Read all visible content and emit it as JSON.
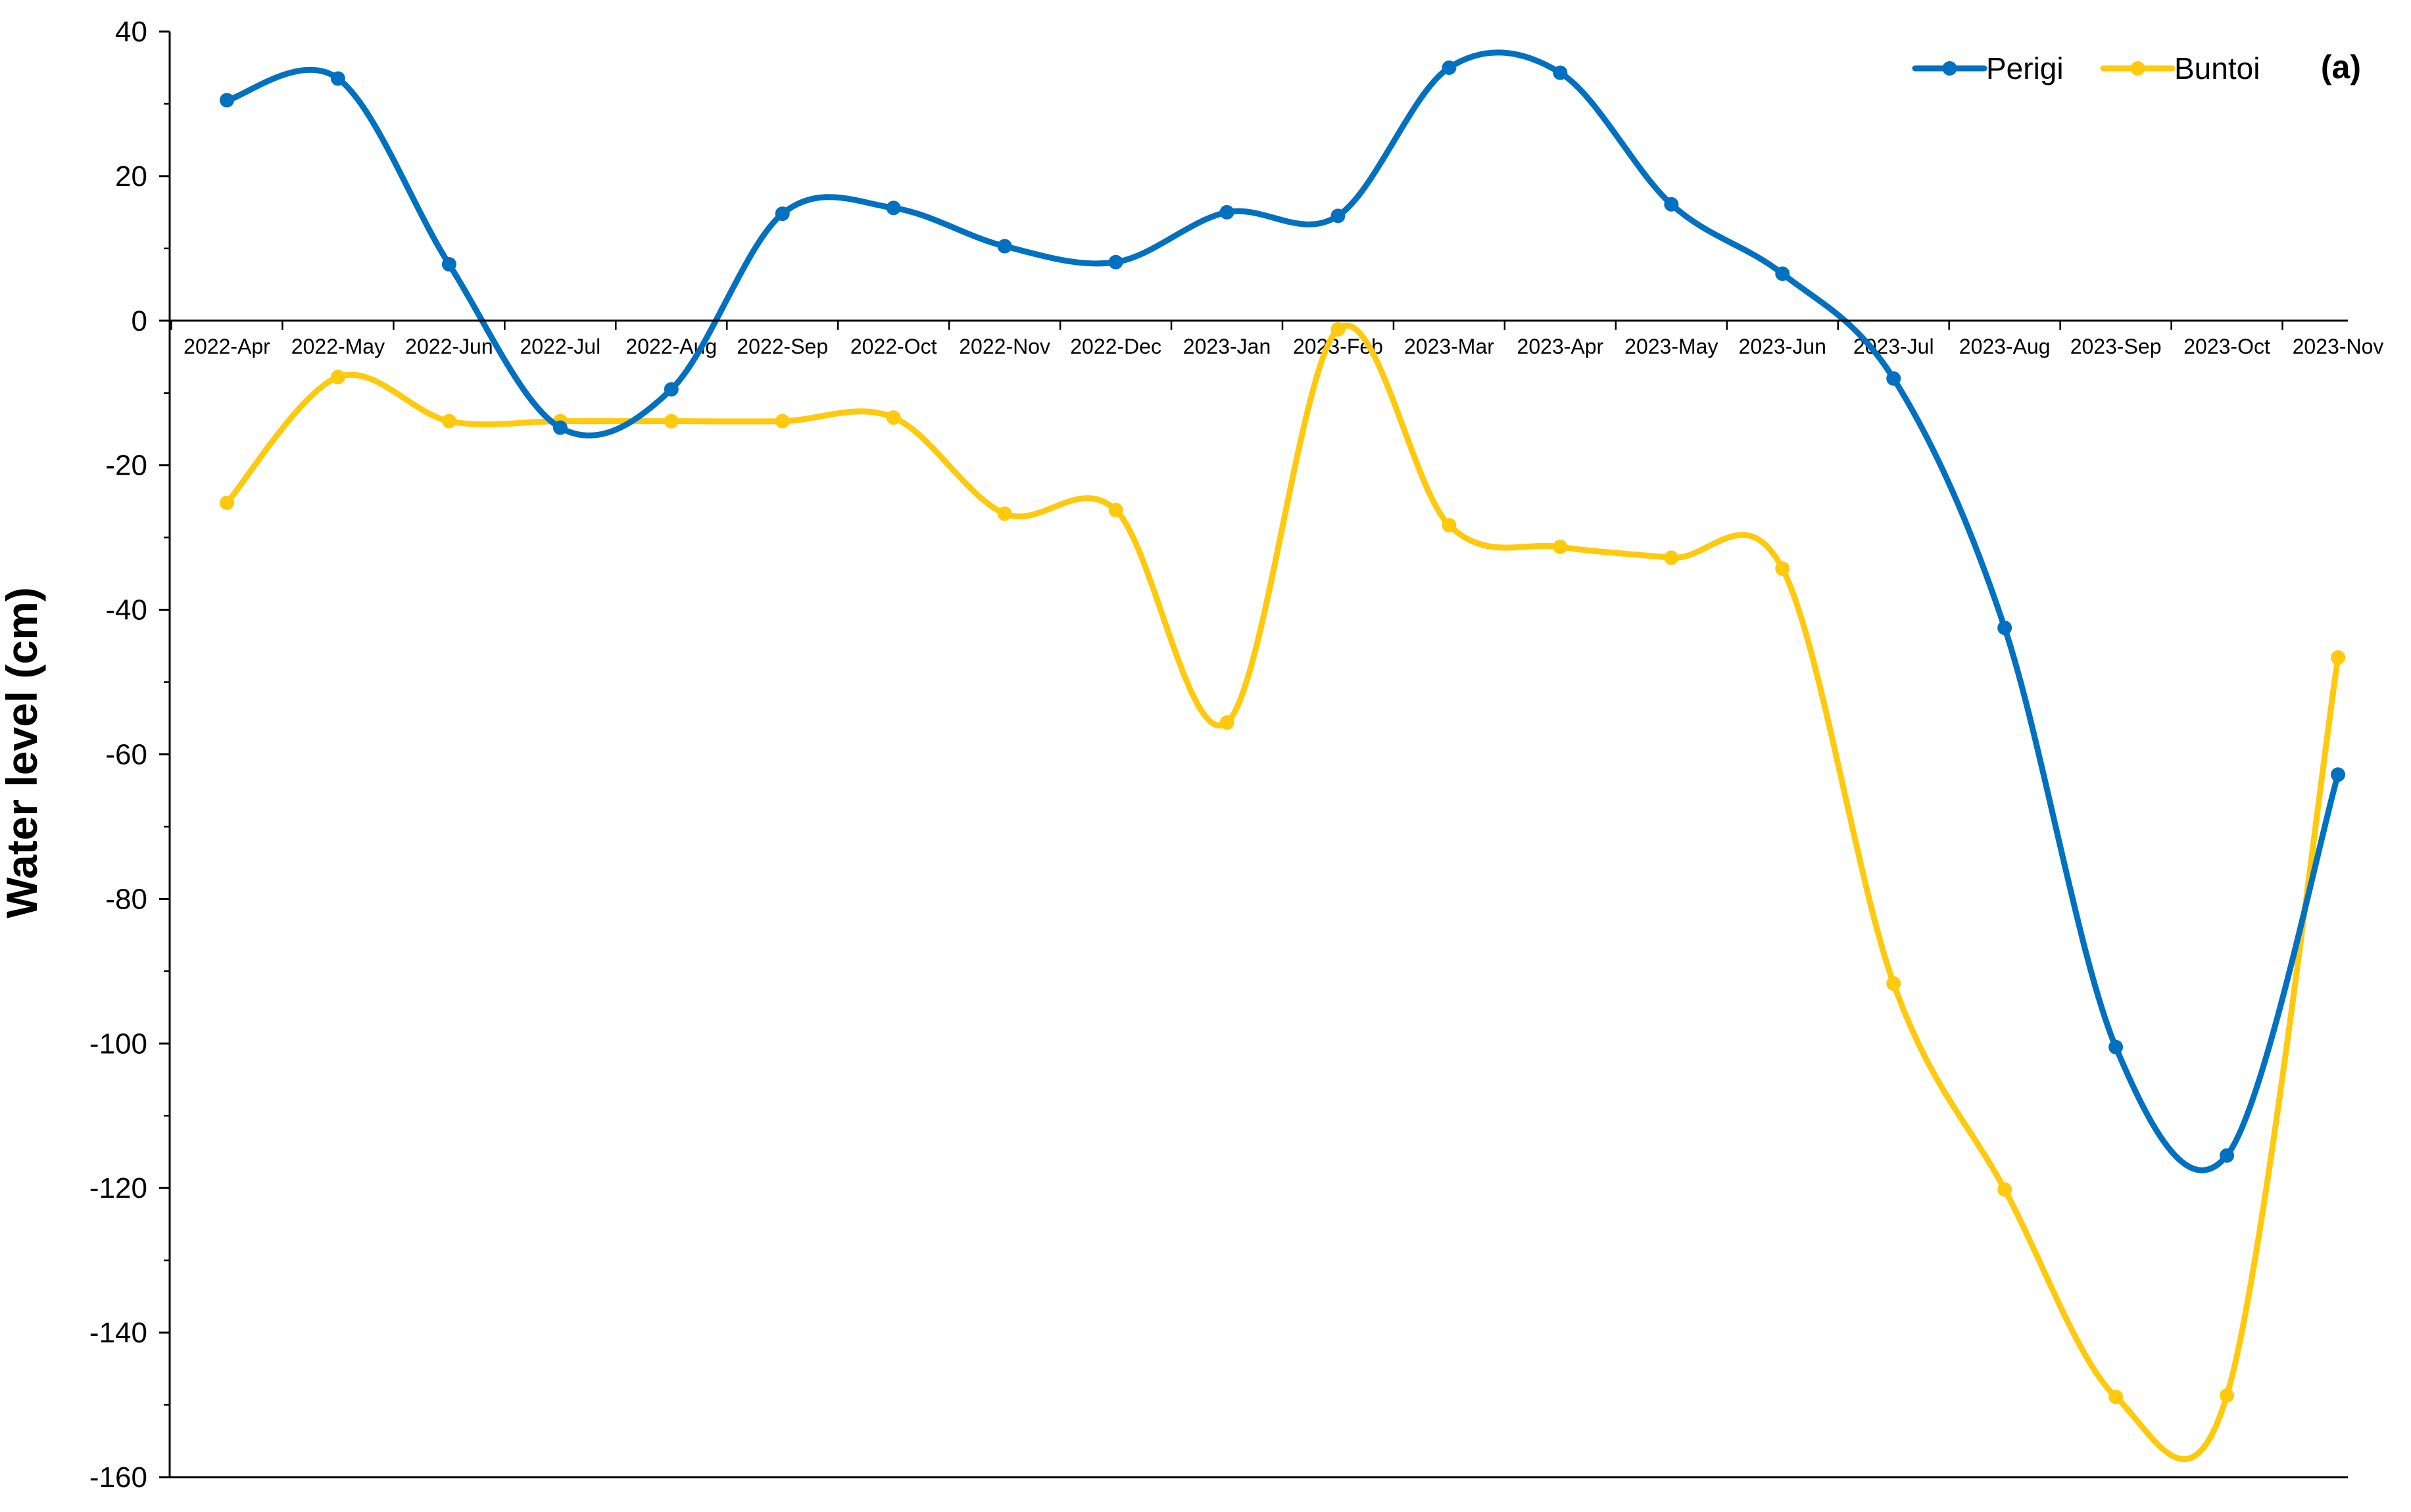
{
  "chart_data": {
    "type": "line",
    "panel_label": "(a)",
    "title": "",
    "xlabel": "",
    "ylabel": "Water level (cm)",
    "ylim": [
      -160,
      40
    ],
    "y_ticks": [
      40,
      20,
      0,
      -20,
      -40,
      -60,
      -80,
      -100,
      -120,
      -140,
      -160
    ],
    "grid": false,
    "smooth": true,
    "legend_position": "top-right",
    "categories": [
      "2022-Apr",
      "2022-May",
      "2022-Jun",
      "2022-Jul",
      "2022-Aug",
      "2022-Sep",
      "2022-Oct",
      "2022-Nov",
      "2022-Dec",
      "2023-Jan",
      "2023-Feb",
      "2023-Mar",
      "2023-Apr",
      "2023-May",
      "2023-Jun",
      "2023-Jul",
      "2023-Aug",
      "2023-Sep",
      "2023-Oct",
      "2023-Nov"
    ],
    "series": [
      {
        "name": "Perigi",
        "color": "#0070c0",
        "values": [
          30.5,
          33.5,
          7.8,
          -14.8,
          -9.5,
          14.8,
          15.6,
          10.3,
          8.1,
          15.0,
          14.5,
          35.0,
          34.3,
          16.1,
          6.5,
          -8.0,
          -42.5,
          -100.5,
          -115.5,
          -62.8
        ]
      },
      {
        "name": "Buntoi",
        "color": "#ffc90e",
        "values": [
          -25.2,
          -7.8,
          -13.9,
          -13.9,
          -13.9,
          -13.9,
          -13.4,
          -26.7,
          -26.2,
          -55.6,
          -1.2,
          -28.3,
          -31.3,
          -32.8,
          -34.3,
          -91.7,
          -120.2,
          -148.9,
          -148.7,
          -46.6
        ]
      }
    ]
  }
}
